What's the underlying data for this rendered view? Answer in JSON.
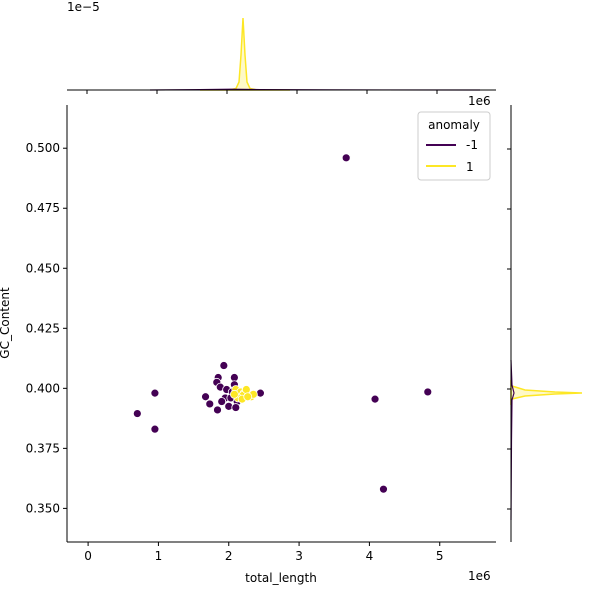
{
  "chart_data": {
    "type": "scatter",
    "xlabel": "total_length",
    "ylabel": "GC_Content",
    "x_offset_text": "1e6",
    "marginal_x_offset_text": "1e−5",
    "marginal_y_offset_text": "1e6",
    "xlim": [
      -0.3,
      5.8
    ],
    "ylim": [
      0.336,
      0.518
    ],
    "x_unit_scale": 1000000,
    "xticks": [
      {
        "value": 0,
        "label": "0"
      },
      {
        "value": 1,
        "label": "1"
      },
      {
        "value": 2,
        "label": "2"
      },
      {
        "value": 3,
        "label": "3"
      },
      {
        "value": 4,
        "label": "4"
      },
      {
        "value": 5,
        "label": "5"
      }
    ],
    "yticks": [
      {
        "value": 0.35,
        "label": "0.350"
      },
      {
        "value": 0.375,
        "label": "0.375"
      },
      {
        "value": 0.4,
        "label": "0.400"
      },
      {
        "value": 0.425,
        "label": "0.425"
      },
      {
        "value": 0.45,
        "label": "0.450"
      },
      {
        "value": 0.475,
        "label": "0.475"
      },
      {
        "value": 0.5,
        "label": "0.500"
      }
    ],
    "grid": false,
    "legend": {
      "title": "anomaly",
      "placement": "top-right",
      "entries": [
        {
          "label": "-1",
          "color": "#440154"
        },
        {
          "label": "1",
          "color": "#fde725"
        }
      ]
    },
    "series": [
      {
        "name": "-1",
        "color": "#440154",
        "points": [
          [
            3.67,
            0.496
          ],
          [
            0.7,
            0.3895
          ],
          [
            0.95,
            0.398
          ],
          [
            0.95,
            0.383
          ],
          [
            4.08,
            0.3955
          ],
          [
            4.83,
            0.3985
          ],
          [
            4.2,
            0.358
          ],
          [
            1.93,
            0.4095
          ],
          [
            1.85,
            0.4045
          ],
          [
            2.08,
            0.4045
          ],
          [
            1.83,
            0.4025
          ],
          [
            2.08,
            0.4015
          ],
          [
            1.88,
            0.4005
          ],
          [
            1.97,
            0.3995
          ],
          [
            2.05,
            0.3985
          ],
          [
            2.45,
            0.398
          ],
          [
            1.67,
            0.3965
          ],
          [
            1.95,
            0.396
          ],
          [
            2.03,
            0.396
          ],
          [
            1.73,
            0.3935
          ],
          [
            2.12,
            0.3945
          ],
          [
            2.0,
            0.3925
          ],
          [
            2.1,
            0.392
          ],
          [
            1.84,
            0.391
          ],
          [
            2.15,
            0.3975
          ],
          [
            1.9,
            0.3945
          ]
        ]
      },
      {
        "name": "1",
        "color": "#fde725",
        "points": [
          [
            2.1,
            0.3995
          ],
          [
            2.17,
            0.3985
          ],
          [
            2.22,
            0.398
          ],
          [
            2.28,
            0.3975
          ],
          [
            2.32,
            0.3965
          ],
          [
            2.2,
            0.397
          ],
          [
            2.25,
            0.3995
          ],
          [
            2.13,
            0.396
          ],
          [
            2.35,
            0.3975
          ],
          [
            2.19,
            0.3955
          ],
          [
            2.08,
            0.3975
          ],
          [
            2.27,
            0.3965
          ]
        ]
      }
    ]
  }
}
